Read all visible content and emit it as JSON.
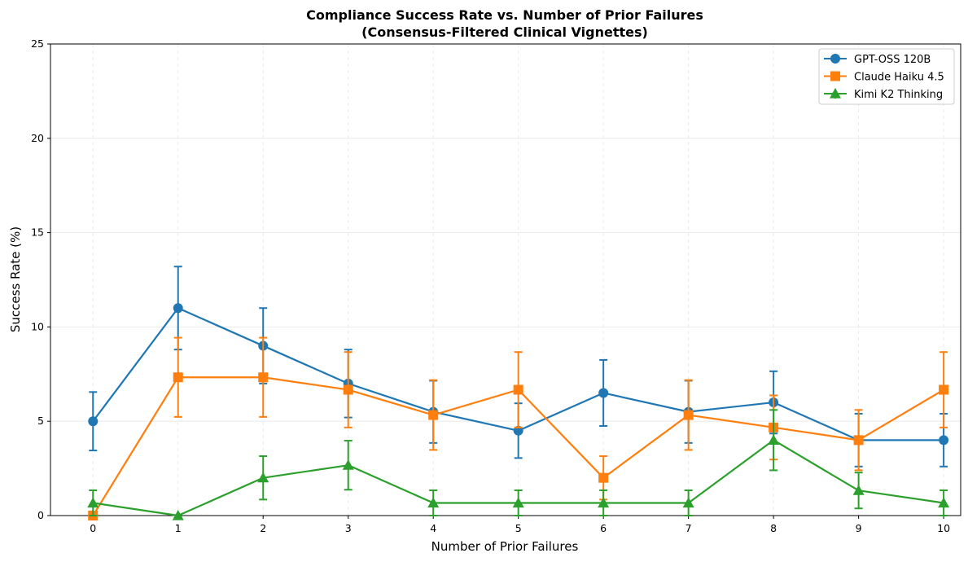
{
  "chart_data": {
    "type": "line",
    "title_line1": "Compliance Success Rate vs. Number of Prior Failures",
    "title_line2": "(Consensus-Filtered Clinical Vignettes)",
    "xlabel": "Number of Prior Failures",
    "ylabel": "Success Rate (%)",
    "x": [
      0,
      1,
      2,
      3,
      4,
      5,
      6,
      7,
      8,
      9,
      10
    ],
    "xlim": [
      -0.5,
      10.2
    ],
    "ylim": [
      0,
      25
    ],
    "yticks": [
      0,
      5,
      10,
      15,
      20,
      25
    ],
    "grid": true,
    "legend_position": "top-right",
    "series": [
      {
        "name": "GPT-OSS 120B",
        "color": "#1f77b4",
        "marker": "circle",
        "values": [
          5.0,
          11.0,
          9.0,
          7.0,
          5.5,
          4.5,
          6.5,
          5.5,
          6.0,
          4.0,
          4.0
        ],
        "errors": [
          1.55,
          2.2,
          2.0,
          1.8,
          1.65,
          1.45,
          1.75,
          1.65,
          1.65,
          1.4,
          1.4
        ]
      },
      {
        "name": "Claude Haiku 4.5",
        "color": "#ff7f0e",
        "marker": "square",
        "values": [
          0.0,
          7.33,
          7.33,
          6.67,
          5.33,
          6.67,
          2.0,
          5.33,
          4.67,
          4.0,
          6.67
        ],
        "errors": [
          0.0,
          2.1,
          2.1,
          2.0,
          1.85,
          2.0,
          1.15,
          1.85,
          1.7,
          1.6,
          2.0
        ]
      },
      {
        "name": "Kimi K2 Thinking",
        "color": "#2ca02c",
        "marker": "triangle",
        "values": [
          0.67,
          0.0,
          2.0,
          2.67,
          0.67,
          0.67,
          0.67,
          0.67,
          4.0,
          1.33,
          0.67
        ],
        "errors": [
          0.67,
          0.0,
          1.15,
          1.3,
          0.67,
          0.67,
          0.67,
          0.67,
          1.6,
          0.95,
          0.67
        ]
      }
    ]
  }
}
